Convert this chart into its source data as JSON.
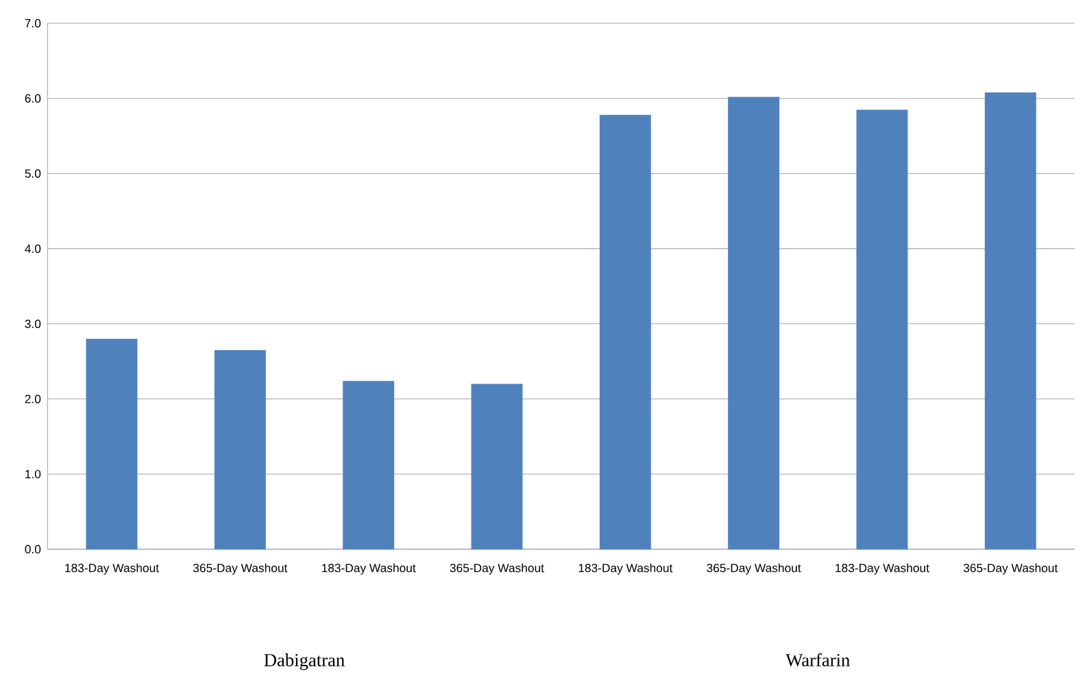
{
  "chart_data": {
    "type": "bar",
    "categories": [
      "183-Day Washout",
      "365-Day Washout",
      "183-Day Washout",
      "365-Day Washout",
      "183-Day Washout",
      "365-Day Washout",
      "183-Day Washout",
      "365-Day Washout"
    ],
    "values": [
      2.8,
      2.65,
      2.24,
      2.2,
      5.78,
      6.02,
      5.85,
      6.08
    ],
    "color": "#4f81bd",
    "ylim": [
      0,
      7
    ],
    "yticks": [
      {
        "value": 0,
        "label": "0.0"
      },
      {
        "value": 1,
        "label": "1.0"
      },
      {
        "value": 2,
        "label": "2.0"
      },
      {
        "value": 3,
        "label": "3.0"
      },
      {
        "value": 4,
        "label": "4.0"
      },
      {
        "value": 5,
        "label": "5.0"
      },
      {
        "value": 6,
        "label": "6.0"
      },
      {
        "value": 7,
        "label": "7.0"
      }
    ],
    "grid": "y",
    "annotations": [
      "Dabigatran",
      "Warfarin"
    ]
  }
}
